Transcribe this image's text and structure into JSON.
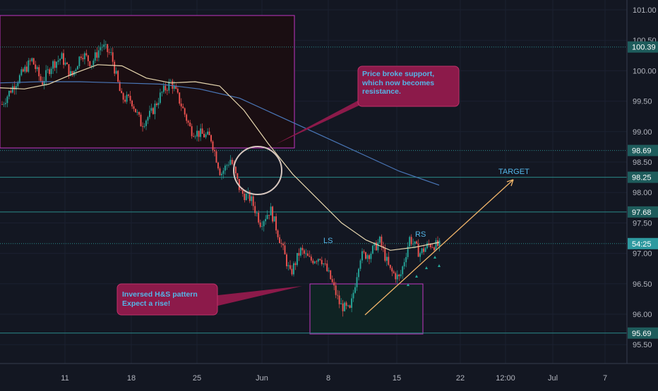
{
  "chart_data": {
    "type": "candlestick",
    "instrument_scale": {
      "ylim": [
        95.2,
        101.15
      ]
    },
    "colors": {
      "background": "#131722",
      "up": "#26a69a",
      "down": "#ef5350",
      "ma_fast": "#e8d8b0",
      "ma_slow": "#4a77b8",
      "box_border": "#c335c3",
      "callout_fill": "#8c1a4a",
      "callout_text": "#54b6e8",
      "hline": "#2a8a8a",
      "trend": "#f2b56a",
      "price_label_bg": "#1e5c5c",
      "current_label_bg": "#2e9aa0"
    },
    "y_ticks": [
      "101.00",
      "100.50",
      "100.00",
      "99.50",
      "99.00",
      "98.50",
      "98.00",
      "97.50",
      "97.00",
      "96.50",
      "96.00",
      "95.50"
    ],
    "y_tick_values": [
      101.0,
      100.5,
      100.0,
      99.5,
      99.0,
      98.5,
      98.0,
      97.5,
      97.0,
      96.5,
      96.0,
      95.5
    ],
    "x_ticks": [
      "11",
      "18",
      "25",
      "Jun",
      "8",
      "15",
      "22",
      "12:00",
      "Jul",
      "7"
    ],
    "horizontal_levels": [
      {
        "label": "100.39",
        "value": 100.39,
        "style": "dotted"
      },
      {
        "label": "98.69",
        "value": 98.69,
        "style": "dotted"
      },
      {
        "label": "98.25",
        "value": 98.25,
        "style": "solid"
      },
      {
        "label": "97.68",
        "value": 97.68,
        "style": "solid"
      },
      {
        "label": "54:25",
        "value": 97.16,
        "style": "dotted",
        "current": true
      },
      {
        "label": "95.69",
        "value": 95.69,
        "style": "solid"
      }
    ],
    "annotations": {
      "callout_top": "Price broke support, which now becomes resistance.",
      "callout_bottom_line1": "Inversed H&S pattern",
      "callout_bottom_line2": "Expect a rise!",
      "ls": "LS",
      "rs": "RS",
      "target": "TARGET"
    },
    "ma_fast_values": [
      99.72,
      99.7,
      99.78,
      99.95,
      100.1,
      100.08,
      99.88,
      99.8,
      99.82,
      99.75,
      99.35,
      98.8,
      98.3,
      97.9,
      97.5,
      97.22,
      97.05,
      97.1,
      97.18
    ],
    "ma_slow_values": [
      99.8,
      99.82,
      99.82,
      99.8,
      99.78,
      99.7,
      99.55,
      99.25,
      98.95,
      98.65,
      98.35,
      98.12
    ],
    "series": [
      {
        "name": "price",
        "anchors": [
          [
            99.45,
            99.72,
            99.95,
            100.18,
            99.8,
            100.1,
            100.22,
            99.9,
            100.3,
            100.12,
            100.42,
            100.25,
            99.55,
            99.52,
            99.12,
            99.3,
            99.62,
            99.82,
            99.45,
            99.02,
            98.96,
            98.9,
            98.3,
            98.55,
            98.0,
            97.9,
            97.5,
            97.72,
            97.2,
            96.65,
            97.05,
            96.88,
            96.95,
            96.6,
            96.15,
            96.05,
            96.95,
            97.0,
            97.2,
            96.72,
            96.58,
            97.25,
            97.0,
            97.15,
            97.12
          ]
        ]
      }
    ]
  }
}
